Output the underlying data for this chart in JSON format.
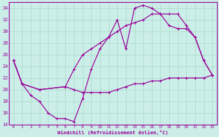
{
  "xlabel": "Windchill (Refroidissement éolien,°C)",
  "bg_color": "#cceee8",
  "grid_color": "#aaddcc",
  "line_color": "#990099",
  "xlim": [
    -0.5,
    23.5
  ],
  "ylim": [
    14,
    35
  ],
  "yticks": [
    14,
    16,
    18,
    20,
    22,
    24,
    26,
    28,
    30,
    32,
    34
  ],
  "xticks": [
    0,
    1,
    2,
    3,
    4,
    5,
    6,
    7,
    8,
    9,
    10,
    11,
    12,
    13,
    14,
    15,
    16,
    17,
    18,
    19,
    20,
    21,
    22,
    23
  ],
  "curve1_x": [
    0,
    1,
    2,
    3,
    4,
    5,
    6,
    7,
    8,
    9,
    10,
    11,
    12,
    13,
    14,
    15,
    16,
    17,
    18,
    19,
    20,
    21,
    22,
    23
  ],
  "curve1_y": [
    25,
    21,
    19,
    18,
    16,
    15,
    15,
    14.5,
    18.5,
    23.5,
    27,
    29,
    32,
    27,
    34,
    34.5,
    34,
    33,
    31,
    30.5,
    30.5,
    29,
    25,
    22.5
  ],
  "curve2_x": [
    0,
    1,
    3,
    6,
    7,
    8,
    9,
    10,
    11,
    12,
    13,
    14,
    15,
    16,
    17,
    18,
    19,
    20,
    21,
    22,
    23
  ],
  "curve2_y": [
    25,
    21,
    20,
    20.5,
    23.5,
    26,
    27,
    28,
    29,
    30,
    31,
    31.5,
    32,
    33,
    33,
    33,
    33,
    31,
    29,
    25,
    22.5
  ],
  "curve3_x": [
    0,
    1,
    3,
    6,
    7,
    8,
    9,
    10,
    11,
    12,
    13,
    14,
    15,
    16,
    17,
    18,
    19,
    20,
    21,
    22,
    23
  ],
  "curve3_y": [
    25,
    21,
    20,
    20.5,
    20,
    19.5,
    19.5,
    19.5,
    19.5,
    20,
    20.5,
    21,
    21,
    21.5,
    21.5,
    22,
    22,
    22,
    22,
    22,
    22.5
  ]
}
